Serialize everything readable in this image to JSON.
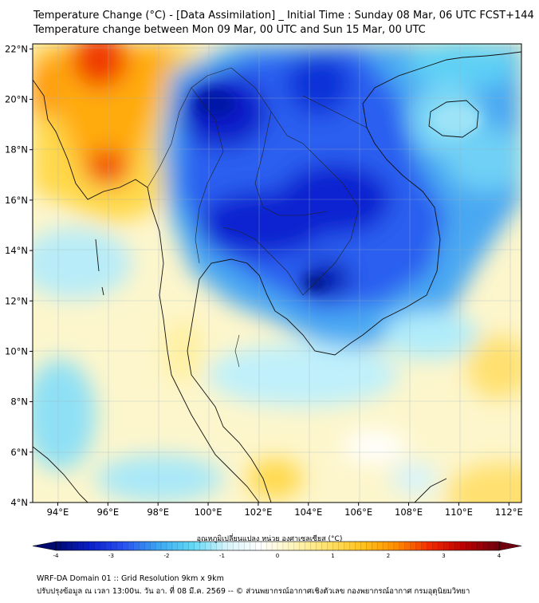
{
  "title_line1": "Temperature Change (°C) - [Data Assimilation] _ Initial Time : Sunday 08 Mar, 06 UTC FCST+144",
  "title_line2": "Temperature change between Mon 09 Mar, 00 UTC and Sun 15 Mar, 00 UTC",
  "map": {
    "lon_range": [
      93,
      112.5
    ],
    "lat_range": [
      4,
      22.2
    ],
    "lon_ticks": [
      "94°E",
      "96°E",
      "98°E",
      "100°E",
      "102°E",
      "104°E",
      "106°E",
      "108°E",
      "110°E",
      "112°E"
    ],
    "lat_ticks": [
      "22°N",
      "20°N",
      "18°N",
      "16°N",
      "14°N",
      "12°N",
      "10°N",
      "8°N",
      "6°N",
      "4°N"
    ],
    "grid": true
  },
  "colorbar": {
    "label": "อุณหภูมิเปลี่ยนแปลง หน่วย องศาเซลเซียส (°C)",
    "ticks": [
      "-4",
      "-3",
      "-2",
      "-1",
      "0",
      "1",
      "2",
      "3",
      "4"
    ],
    "range": [
      -4,
      4
    ],
    "colors": [
      "#000a6e",
      "#0a1fc8",
      "#2a52f0",
      "#3ca6f2",
      "#5fd8f5",
      "#d6f3fb",
      "#ffffff",
      "#fff4b8",
      "#ffe066",
      "#ffc21a",
      "#ff8c00",
      "#f02800",
      "#b80000",
      "#6e0010"
    ]
  },
  "footer_line1": "WRF-DA Domain 01 :: Grid Resolution 9km x 9km",
  "footer_line2": "ปรับปรุงข้อมูล ณ เวลา 13:00น. วัน อา. ที่ 08 มี.ค. 2569 -- © ส่วนพยากรณ์อากาศเชิงตัวเลข กองพยากรณ์อากาศ กรมอุตุนิยมวิทยา"
}
